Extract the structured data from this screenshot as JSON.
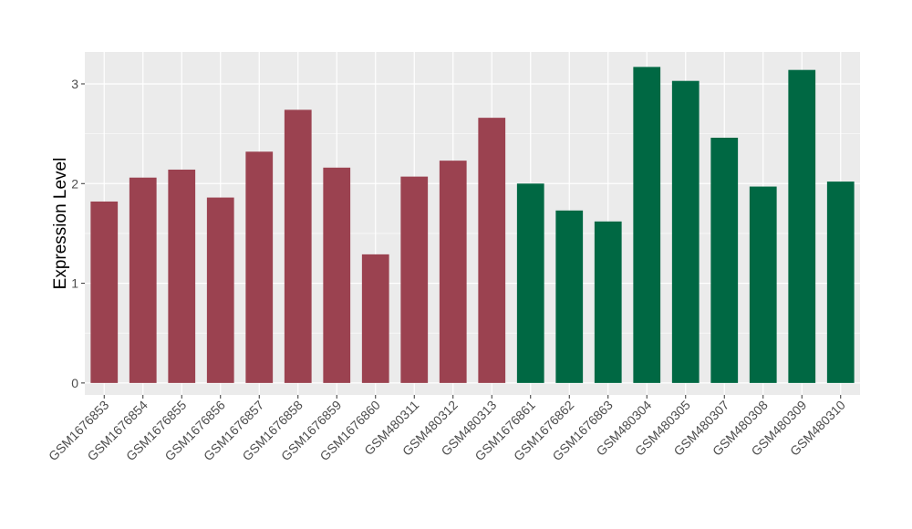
{
  "chart_data": {
    "type": "bar",
    "title": "",
    "xlabel": "",
    "ylabel": "Expression Level",
    "ylim": [
      -0.12,
      3.32
    ],
    "yticks": [
      0,
      1,
      2,
      3
    ],
    "grid": true,
    "legend": "none",
    "panel_color": "#ebebeb",
    "grid_color": "#ffffff",
    "categories": [
      "GSM1676853",
      "GSM1676854",
      "GSM1676855",
      "GSM1676856",
      "GSM1676857",
      "GSM1676858",
      "GSM1676859",
      "GSM1676860",
      "GSM480311",
      "GSM480312",
      "GSM480313",
      "GSM1676861",
      "GSM1676862",
      "GSM1676863",
      "GSM480304",
      "GSM480305",
      "GSM480307",
      "GSM480308",
      "GSM480309",
      "GSM480310"
    ],
    "values": [
      1.82,
      2.06,
      2.14,
      1.86,
      2.32,
      2.74,
      2.16,
      1.29,
      2.07,
      2.23,
      2.66,
      2.0,
      1.73,
      1.62,
      3.17,
      3.03,
      2.46,
      1.97,
      3.14,
      2.02
    ],
    "colors": [
      "#9b4250",
      "#9b4250",
      "#9b4250",
      "#9b4250",
      "#9b4250",
      "#9b4250",
      "#9b4250",
      "#9b4250",
      "#9b4250",
      "#9b4250",
      "#9b4250",
      "#006843",
      "#006843",
      "#006843",
      "#006843",
      "#006843",
      "#006843",
      "#006843",
      "#006843",
      "#006843"
    ]
  }
}
